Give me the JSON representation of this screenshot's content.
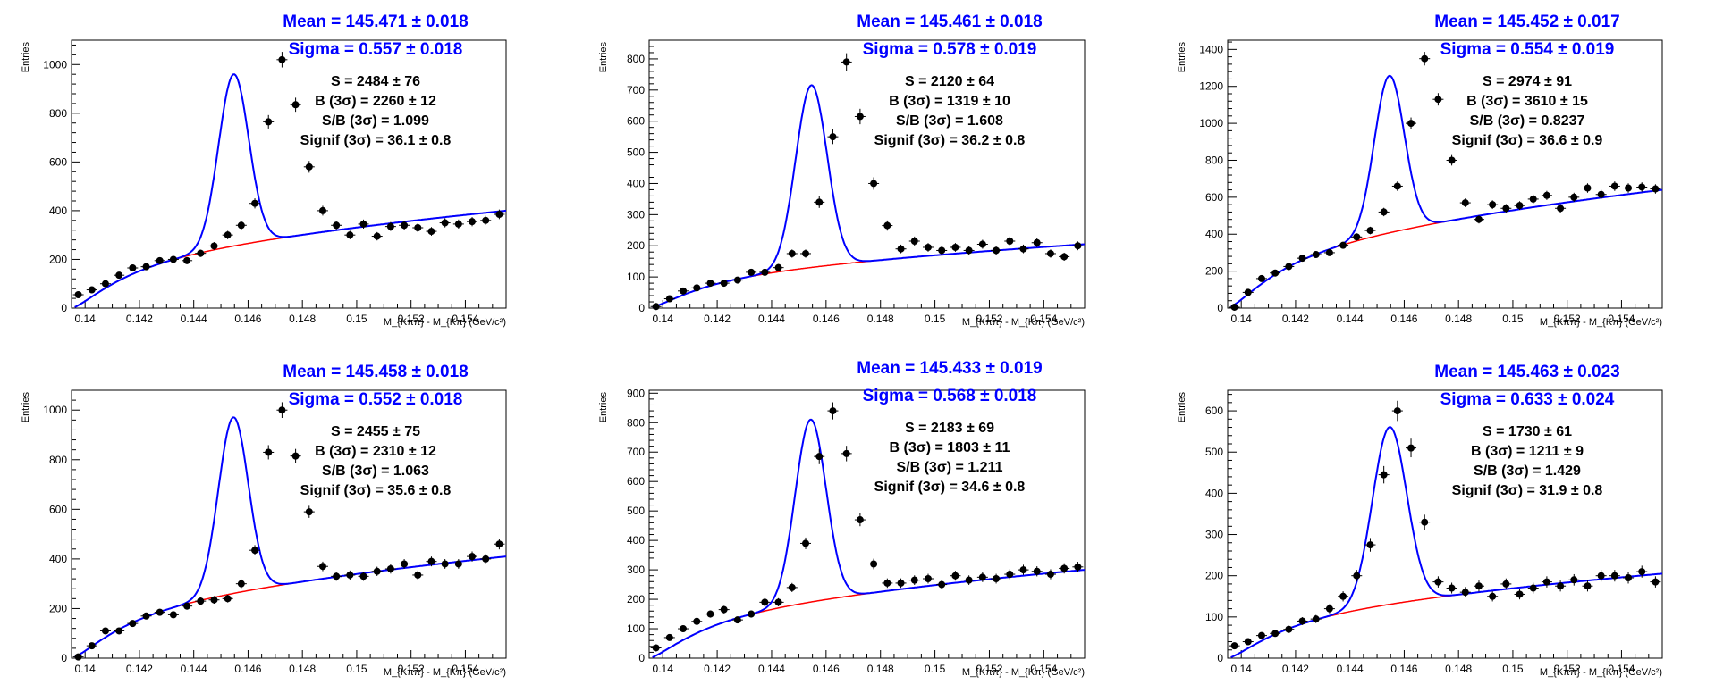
{
  "chart_data": [
    {
      "type": "scatter",
      "xlabel": "M_{Kππ} - M_{Kπ} (GeV/c²)",
      "ylabel": "Entries",
      "xlim": [
        0.1395,
        0.1555
      ],
      "ylim": [
        0,
        1100
      ],
      "x_ticks": [
        "0.14",
        "0.142",
        "0.144",
        "0.146",
        "0.148",
        "0.15",
        "0.152",
        "0.154"
      ],
      "y_ticks": [
        "0",
        "200",
        "400",
        "600",
        "800",
        "1000"
      ],
      "stats": {
        "mean": "Mean = 145.471 ± 0.018",
        "sigma": "Sigma = 0.557 ± 0.018",
        "s": "S = 2484 ± 76",
        "b": "B (3σ) = 2260 ± 12",
        "sb": "S/B (3σ) = 1.099",
        "signif": "Signif (3σ) = 36.1 ± 0.8"
      },
      "fit": {
        "mean": 0.145471,
        "sigma": 0.000557,
        "peak": 705,
        "bkg_scale": 400
      },
      "x": [
        0.13975,
        0.14025,
        0.14075,
        0.14125,
        0.14175,
        0.14225,
        0.14275,
        0.14325,
        0.14375,
        0.14425,
        0.14475,
        0.14525,
        0.14575,
        0.14625,
        0.14675,
        0.14725,
        0.14775,
        0.14825,
        0.14875,
        0.14925,
        0.14975,
        0.15025,
        0.15075,
        0.15125,
        0.15175,
        0.15225,
        0.15275,
        0.15325,
        0.15375,
        0.15425,
        0.15475,
        0.15525
      ],
      "y": [
        55,
        75,
        100,
        135,
        165,
        170,
        195,
        200,
        195,
        225,
        255,
        300,
        340,
        430,
        765,
        1020,
        835,
        580,
        400,
        340,
        300,
        345,
        295,
        335,
        340,
        330,
        315,
        350,
        345,
        355,
        360,
        385
      ]
    },
    {
      "type": "scatter",
      "xlabel": "M_{Kππ} - M_{Kπ} (GeV/c²)",
      "ylabel": "Entries",
      "xlim": [
        0.1395,
        0.1555
      ],
      "ylim": [
        0,
        860
      ],
      "x_ticks": [
        "0.14",
        "0.142",
        "0.144",
        "0.146",
        "0.148",
        "0.15",
        "0.152",
        "0.154"
      ],
      "y_ticks": [
        "0",
        "100",
        "200",
        "300",
        "400",
        "500",
        "600",
        "700",
        "800"
      ],
      "stats": {
        "mean": "Mean = 145.461 ± 0.018",
        "sigma": "Sigma = 0.578 ± 0.019",
        "s": "S = 2120 ± 64",
        "b": "B (3σ) = 1319 ± 10",
        "sb": "S/B (3σ) = 1.608",
        "signif": "Signif (3σ) = 36.2 ± 0.8"
      },
      "fit": {
        "mean": 0.145461,
        "sigma": 0.000578,
        "peak": 585,
        "bkg_scale": 205
      },
      "x": [
        0.13975,
        0.14025,
        0.14075,
        0.14125,
        0.14175,
        0.14225,
        0.14275,
        0.14325,
        0.14375,
        0.14425,
        0.14475,
        0.14525,
        0.14575,
        0.14625,
        0.14675,
        0.14725,
        0.14775,
        0.14825,
        0.14875,
        0.14925,
        0.14975,
        0.15025,
        0.15075,
        0.15125,
        0.15175,
        0.15225,
        0.15275,
        0.15325,
        0.15375,
        0.15425,
        0.15475,
        0.15525
      ],
      "y": [
        5,
        30,
        55,
        65,
        80,
        80,
        90,
        115,
        115,
        130,
        175,
        175,
        340,
        550,
        790,
        615,
        400,
        265,
        190,
        215,
        195,
        185,
        195,
        185,
        205,
        185,
        215,
        190,
        210,
        175,
        165,
        200
      ]
    },
    {
      "type": "scatter",
      "xlabel": "M_{Kππ} - M_{Kπ} (GeV/c²)",
      "ylabel": "Entries",
      "xlim": [
        0.1395,
        0.1555
      ],
      "ylim": [
        0,
        1450
      ],
      "x_ticks": [
        "0.14",
        "0.142",
        "0.144",
        "0.146",
        "0.148",
        "0.15",
        "0.152",
        "0.154"
      ],
      "y_ticks": [
        "0",
        "200",
        "400",
        "600",
        "800",
        "1000",
        "1200",
        "1400"
      ],
      "stats": {
        "mean": "Mean = 145.452 ± 0.017",
        "sigma": "Sigma = 0.554 ± 0.019",
        "s": "S = 2974 ± 91",
        "b": "B (3σ) = 3610 ± 15",
        "sb": "S/B (3σ) = 0.8237",
        "signif": "Signif (3σ) = 36.6 ± 0.9"
      },
      "fit": {
        "mean": 0.145452,
        "sigma": 0.000554,
        "peak": 850,
        "bkg_scale": 640
      },
      "x": [
        0.13975,
        0.14025,
        0.14075,
        0.14125,
        0.14175,
        0.14225,
        0.14275,
        0.14325,
        0.14375,
        0.14425,
        0.14475,
        0.14525,
        0.14575,
        0.14625,
        0.14675,
        0.14725,
        0.14775,
        0.14825,
        0.14875,
        0.14925,
        0.14975,
        0.15025,
        0.15075,
        0.15125,
        0.15175,
        0.15225,
        0.15275,
        0.15325,
        0.15375,
        0.15425,
        0.15475,
        0.15525
      ],
      "y": [
        5,
        85,
        160,
        190,
        225,
        270,
        290,
        300,
        340,
        385,
        420,
        520,
        660,
        1000,
        1350,
        1130,
        800,
        570,
        480,
        560,
        540,
        555,
        590,
        610,
        540,
        600,
        650,
        615,
        660,
        650,
        655,
        645
      ]
    },
    {
      "type": "scatter",
      "xlabel": "M_{Kππ} - M_{Kπ} (GeV/c²)",
      "ylabel": "Entries",
      "xlim": [
        0.1395,
        0.1555
      ],
      "ylim": [
        0,
        1080
      ],
      "x_ticks": [
        "0.14",
        "0.142",
        "0.144",
        "0.146",
        "0.148",
        "0.15",
        "0.152",
        "0.154"
      ],
      "y_ticks": [
        "0",
        "200",
        "400",
        "600",
        "800",
        "1000"
      ],
      "stats": {
        "mean": "Mean = 145.458 ± 0.018",
        "sigma": "Sigma = 0.552 ± 0.018",
        "s": "S = 2455 ± 75",
        "b": "B (3σ) = 2310 ± 12",
        "sb": "S/B (3σ) = 1.063",
        "signif": "Signif (3σ) = 35.6 ± 0.8"
      },
      "fit": {
        "mean": 0.145458,
        "sigma": 0.000552,
        "peak": 710,
        "bkg_scale": 410
      },
      "x": [
        0.13975,
        0.14025,
        0.14075,
        0.14125,
        0.14175,
        0.14225,
        0.14275,
        0.14325,
        0.14375,
        0.14425,
        0.14475,
        0.14525,
        0.14575,
        0.14625,
        0.14675,
        0.14725,
        0.14775,
        0.14825,
        0.14875,
        0.14925,
        0.14975,
        0.15025,
        0.15075,
        0.15125,
        0.15175,
        0.15225,
        0.15275,
        0.15325,
        0.15375,
        0.15425,
        0.15475,
        0.15525
      ],
      "y": [
        5,
        50,
        110,
        110,
        140,
        170,
        185,
        175,
        210,
        230,
        235,
        240,
        300,
        435,
        830,
        1000,
        815,
        590,
        370,
        330,
        335,
        330,
        350,
        360,
        380,
        335,
        390,
        380,
        380,
        410,
        400,
        460
      ]
    },
    {
      "type": "scatter",
      "xlabel": "M_{Kππ} - M_{Kπ} (GeV/c²)",
      "ylabel": "Entries",
      "xlim": [
        0.1395,
        0.1555
      ],
      "ylim": [
        0,
        910
      ],
      "x_ticks": [
        "0.14",
        "0.142",
        "0.144",
        "0.146",
        "0.148",
        "0.15",
        "0.152",
        "0.154"
      ],
      "y_ticks": [
        "0",
        "100",
        "200",
        "300",
        "400",
        "500",
        "600",
        "700",
        "800",
        "900"
      ],
      "stats": {
        "mean": "Mean = 145.433 ± 0.019",
        "sigma": "Sigma = 0.568 ± 0.018",
        "s": "S = 2183 ± 69",
        "b": "B (3σ) = 1803 ± 11",
        "sb": "S/B (3σ) = 1.211",
        "signif": "Signif (3σ) = 34.6 ± 0.8"
      },
      "fit": {
        "mean": 0.145433,
        "sigma": 0.000568,
        "peak": 620,
        "bkg_scale": 300
      },
      "x": [
        0.13975,
        0.14025,
        0.14075,
        0.14125,
        0.14175,
        0.14225,
        0.14275,
        0.14325,
        0.14375,
        0.14425,
        0.14475,
        0.14525,
        0.14575,
        0.14625,
        0.14675,
        0.14725,
        0.14775,
        0.14825,
        0.14875,
        0.14925,
        0.14975,
        0.15025,
        0.15075,
        0.15125,
        0.15175,
        0.15225,
        0.15275,
        0.15325,
        0.15375,
        0.15425,
        0.15475,
        0.15525
      ],
      "y": [
        35,
        70,
        100,
        125,
        150,
        165,
        130,
        150,
        190,
        190,
        240,
        390,
        685,
        840,
        695,
        470,
        320,
        255,
        255,
        265,
        270,
        250,
        280,
        265,
        275,
        270,
        285,
        300,
        295,
        285,
        305,
        310
      ]
    },
    {
      "type": "scatter",
      "xlabel": "M_{Kππ} - M_{Kπ} (GeV/c²)",
      "ylabel": "Entries",
      "xlim": [
        0.1395,
        0.1555
      ],
      "ylim": [
        0,
        650
      ],
      "x_ticks": [
        "0.14",
        "0.142",
        "0.144",
        "0.146",
        "0.148",
        "0.15",
        "0.152",
        "0.154"
      ],
      "y_ticks": [
        "0",
        "100",
        "200",
        "300",
        "400",
        "500",
        "600"
      ],
      "stats": {
        "mean": "Mean = 145.463 ± 0.023",
        "sigma": "Sigma = 0.633 ± 0.024",
        "s": "S = 1730 ± 61",
        "b": "B (3σ) = 1211 ± 9",
        "sb": "S/B (3σ) = 1.429",
        "signif": "Signif (3σ) = 31.9 ± 0.8"
      },
      "fit": {
        "mean": 0.145463,
        "sigma": 0.000633,
        "peak": 430,
        "bkg_scale": 205
      },
      "x": [
        0.13975,
        0.14025,
        0.14075,
        0.14125,
        0.14175,
        0.14225,
        0.14275,
        0.14325,
        0.14375,
        0.14425,
        0.14475,
        0.14525,
        0.14575,
        0.14625,
        0.14675,
        0.14725,
        0.14775,
        0.14825,
        0.14875,
        0.14925,
        0.14975,
        0.15025,
        0.15075,
        0.15125,
        0.15175,
        0.15225,
        0.15275,
        0.15325,
        0.15375,
        0.15425,
        0.15475,
        0.15525
      ],
      "y": [
        30,
        40,
        55,
        60,
        70,
        90,
        95,
        120,
        150,
        200,
        275,
        445,
        600,
        510,
        330,
        185,
        170,
        160,
        175,
        150,
        180,
        155,
        170,
        185,
        175,
        190,
        175,
        200,
        200,
        195,
        210,
        185
      ]
    }
  ],
  "colors": {
    "fit_total": "#0000ff",
    "fit_background": "#ff0000",
    "points": "#000000",
    "stat_title": "#0000ff"
  }
}
